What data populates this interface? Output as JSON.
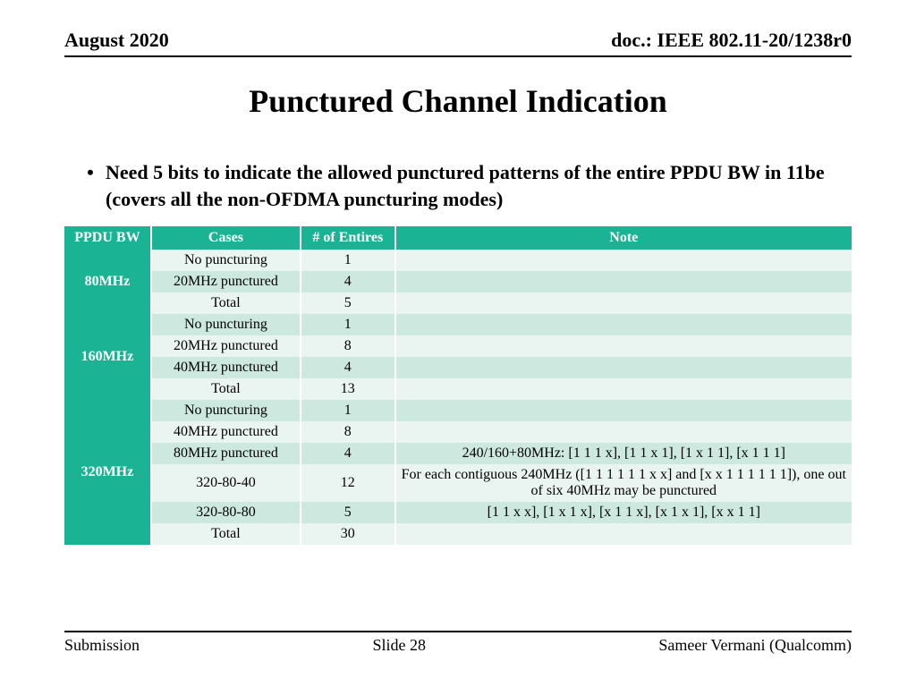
{
  "header": {
    "date": "August 2020",
    "doc": "doc.: IEEE 802.11-20/1238r0"
  },
  "title": "Punctured Channel Indication",
  "bullet": "Need 5 bits to indicate the allowed punctured patterns of the entire PPDU BW in 11be (covers all the non-OFDMA puncturing modes)",
  "table": {
    "columns": [
      "PPDU BW",
      "Cases",
      "# of Entires",
      "Note"
    ],
    "groups": [
      {
        "bw": "80MHz",
        "rows": [
          {
            "case": "No puncturing",
            "entries": "1",
            "note": ""
          },
          {
            "case": "20MHz punctured",
            "entries": "4",
            "note": ""
          },
          {
            "case": "Total",
            "entries": "5",
            "note": ""
          }
        ]
      },
      {
        "bw": "160MHz",
        "rows": [
          {
            "case": "No puncturing",
            "entries": "1",
            "note": ""
          },
          {
            "case": "20MHz punctured",
            "entries": "8",
            "note": ""
          },
          {
            "case": "40MHz punctured",
            "entries": "4",
            "note": ""
          },
          {
            "case": "Total",
            "entries": "13",
            "note": ""
          }
        ]
      },
      {
        "bw": "320MHz",
        "rows": [
          {
            "case": "No puncturing",
            "entries": "1",
            "note": ""
          },
          {
            "case": "40MHz punctured",
            "entries": "8",
            "note": ""
          },
          {
            "case": "80MHz punctured",
            "entries": "4",
            "note": "240/160+80MHz: [1 1 1 x], [1 1 x 1], [1 x 1 1], [x 1 1 1]"
          },
          {
            "case": "320-80-40",
            "entries": "12",
            "note": "For each contiguous 240MHz ([1 1 1 1 1 1 x x] and [x x 1 1 1 1 1 1]), one out of six 40MHz may be punctured"
          },
          {
            "case": "320-80-80",
            "entries": "5",
            "note": "[1 1 x x], [1 x 1 x], [x 1 1 x], [x 1 x 1], [x x 1 1]"
          },
          {
            "case": "Total",
            "entries": "30",
            "note": ""
          }
        ]
      }
    ],
    "colors": {
      "header_bg": "#1ab394",
      "header_text": "#ffffff",
      "row_light": "#eaf5f1",
      "row_dark": "#cde8df"
    }
  },
  "footer": {
    "left": "Submission",
    "center": "Slide 28",
    "right": "Sameer Vermani (Qualcomm)"
  }
}
